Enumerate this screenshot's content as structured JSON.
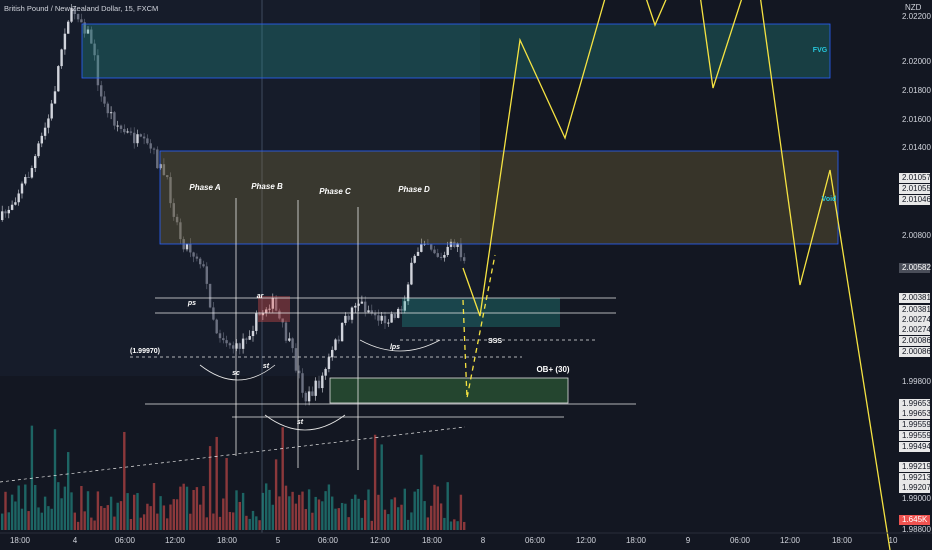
{
  "header": {
    "title": "British Pound / New Zealand Dollar, 15, FXCM"
  },
  "price_scale": {
    "currency": "NZD",
    "labels": [
      "2.02200",
      "2.02000",
      "2.01800",
      "2.01600",
      "2.01400",
      "2.01057",
      "2.01055",
      "2.01046",
      "2.00800",
      "2.00582",
      "2.00381",
      "2.00381",
      "2.00274",
      "2.00274",
      "2.00086",
      "2.00086",
      "1.99800",
      "1.99653",
      "1.99653",
      "1.99559",
      "1.99559",
      "1.99494",
      "1.99219",
      "1.99213",
      "1.99207",
      "1.99000",
      "1.645K",
      "1.98800"
    ]
  },
  "time_scale": {
    "labels": [
      "18:00",
      "4",
      "06:00",
      "12:00",
      "18:00",
      "5",
      "06:00",
      "12:00",
      "18:00",
      "8",
      "06:00",
      "12:00",
      "18:00",
      "9",
      "06:00",
      "12:00",
      "18:00",
      "10"
    ]
  },
  "annotations": [
    "Phase A",
    "Phase B",
    "Phase C",
    "Phase D",
    "ps",
    "ar",
    "sc",
    "st",
    "st",
    "lps",
    "(1.99970)",
    "SSS",
    "OB+  (30)",
    "FVG",
    "Void"
  ]
}
